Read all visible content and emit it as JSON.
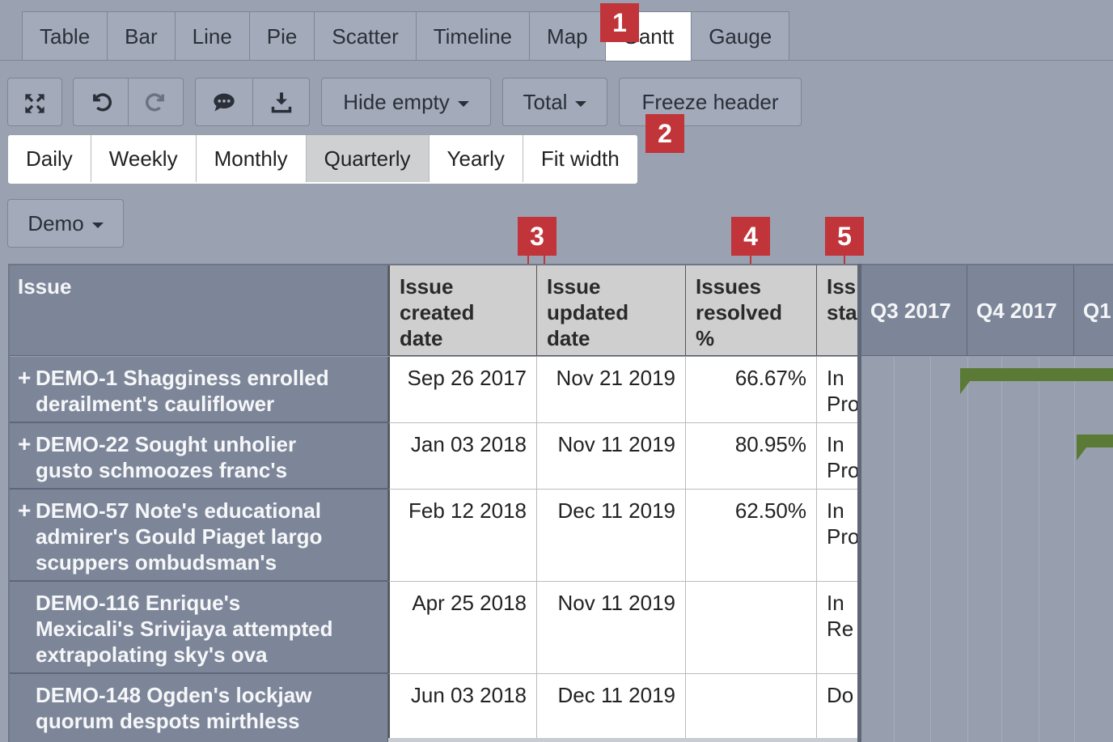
{
  "tabs": [
    "Table",
    "Bar",
    "Line",
    "Pie",
    "Scatter",
    "Timeline",
    "Map",
    "Gantt",
    "Gauge"
  ],
  "active_tab": "Gantt",
  "toolbar": {
    "hide_empty": "Hide empty",
    "total": "Total",
    "freeze_header": "Freeze header"
  },
  "periods": [
    "Daily",
    "Weekly",
    "Monthly",
    "Quarterly",
    "Yearly",
    "Fit width"
  ],
  "active_period": "Quarterly",
  "project_dropdown": "Demo",
  "badges": [
    "1",
    "2",
    "3",
    "4",
    "5"
  ],
  "table": {
    "row_header": "Issue",
    "columns": [
      "Issue created date",
      "Issue updated date",
      "Issues resolved %",
      "Issue status"
    ],
    "col_header_lines": [
      [
        "Issue",
        "created",
        "date"
      ],
      [
        "Issue",
        "updated",
        "date"
      ],
      [
        "Issues",
        "resolved",
        "%"
      ],
      [
        "Iss",
        "sta"
      ]
    ],
    "quarters": [
      "Q3 2017",
      "Q4 2017",
      "Q1"
    ],
    "rows": [
      {
        "expand": "+",
        "issue": [
          "DEMO-1 Shagginess enrolled",
          "derailment's cauliflower"
        ],
        "created": "Sep 26 2017",
        "updated": "Nov 21 2019",
        "resolved": "66.67%",
        "status": [
          "In",
          "Pro"
        ]
      },
      {
        "expand": "+",
        "issue": [
          "DEMO-22 Sought unholier",
          "gusto schmoozes franc's"
        ],
        "created": "Jan 03 2018",
        "updated": "Nov 11 2019",
        "resolved": "80.95%",
        "status": [
          "In",
          "Pro"
        ]
      },
      {
        "expand": "+",
        "issue": [
          "DEMO-57 Note's educational",
          "admirer's Gould Piaget largo",
          "scuppers ombudsman's"
        ],
        "created": "Feb 12 2018",
        "updated": "Dec 11 2019",
        "resolved": "62.50%",
        "status": [
          "In",
          "Pro"
        ]
      },
      {
        "expand": "",
        "issue": [
          "DEMO-116 Enrique's",
          "Mexicali's Srivijaya attempted",
          "extrapolating sky's ova"
        ],
        "created": "Apr 25 2018",
        "updated": "Nov 11 2019",
        "resolved": "",
        "status": [
          "In",
          "Re"
        ]
      },
      {
        "expand": "",
        "issue": [
          "DEMO-148 Ogden's lockjaw",
          "quorum despots mirthless"
        ],
        "created": "Jun 03 2018",
        "updated": "Dec 11 2019",
        "resolved": "",
        "status": [
          "Do"
        ]
      }
    ]
  },
  "colors": {
    "gantt_bar": "#5a7a35",
    "badge": "#c0343a"
  }
}
